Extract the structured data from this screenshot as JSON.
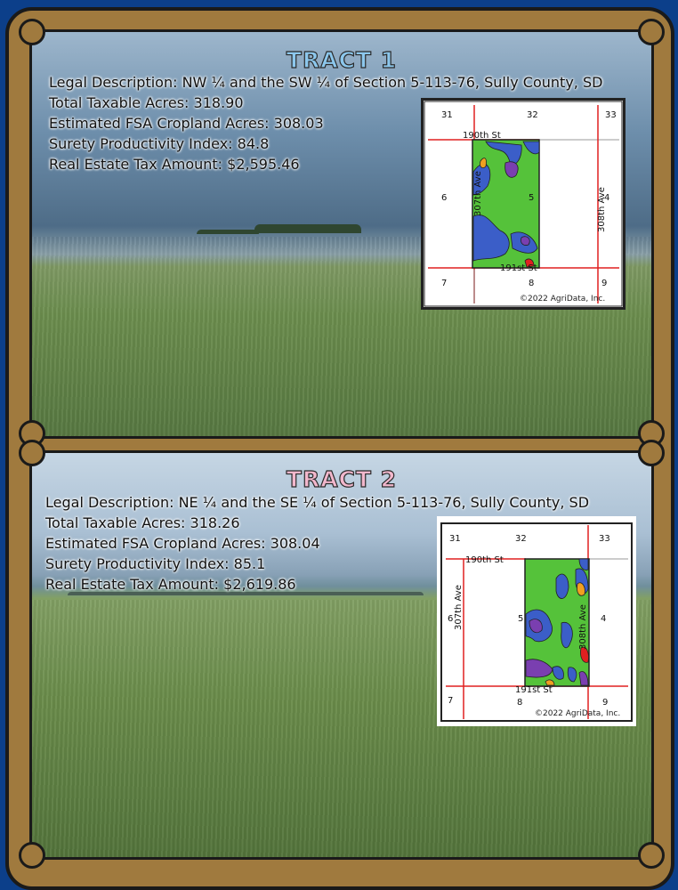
{
  "tract1": {
    "title": "TRACT 1",
    "legal": "Legal Description: NW ¼ and the SW ¼ of Section 5-113-76, Sully County, SD",
    "taxable": "Total Taxable Acres: 318.90",
    "cropland": "Estimated FSA Cropland Acres: 308.03",
    "productivity": "Surety Productivity Index: 84.8",
    "tax": "Real Estate Tax Amount: $2,595.46",
    "map": {
      "sections": {
        "s31": "31",
        "s32": "32",
        "s33": "33",
        "s6": "6",
        "s5": "5",
        "s4": "4",
        "s7": "7",
        "s8": "8",
        "s9": "9"
      },
      "roads": {
        "r190": "190th St",
        "r191": "191st St",
        "r307": "307th Ave",
        "r308": "308th Ave"
      },
      "copyright": "©2022 AgriData, Inc."
    }
  },
  "tract2": {
    "title": "TRACT 2",
    "legal": "Legal Description: NE ¼ and the SE ¼ of Section 5-113-76, Sully County, SD",
    "taxable": "Total Taxable Acres: 318.26",
    "cropland": "Estimated FSA Cropland Acres: 308.04",
    "productivity": "Surety Productivity Index: 85.1",
    "tax": "Real Estate Tax Amount: $2,619.86",
    "map": {
      "sections": {
        "s31": "31",
        "s32": "32",
        "s33": "33",
        "s6": "6",
        "s5": "5",
        "s4": "4",
        "s7": "7",
        "s8": "8",
        "s9": "9"
      },
      "roads": {
        "r190": "190th St",
        "r191": "191st St",
        "r307": "307th Ave",
        "r308": "308th Ave"
      },
      "copyright": "©2022 AgriData, Inc."
    }
  },
  "colors": {
    "frame": "#a07a3e",
    "background": "#0c3f8a",
    "tract1_title": "#8cc7ec",
    "tract2_title": "#f2b7cc",
    "soil_green": "#55c23a",
    "soil_blue": "#3b5ec8",
    "soil_purple": "#7a3fb0",
    "soil_orange": "#f0a020",
    "road_red": "#e02020"
  }
}
